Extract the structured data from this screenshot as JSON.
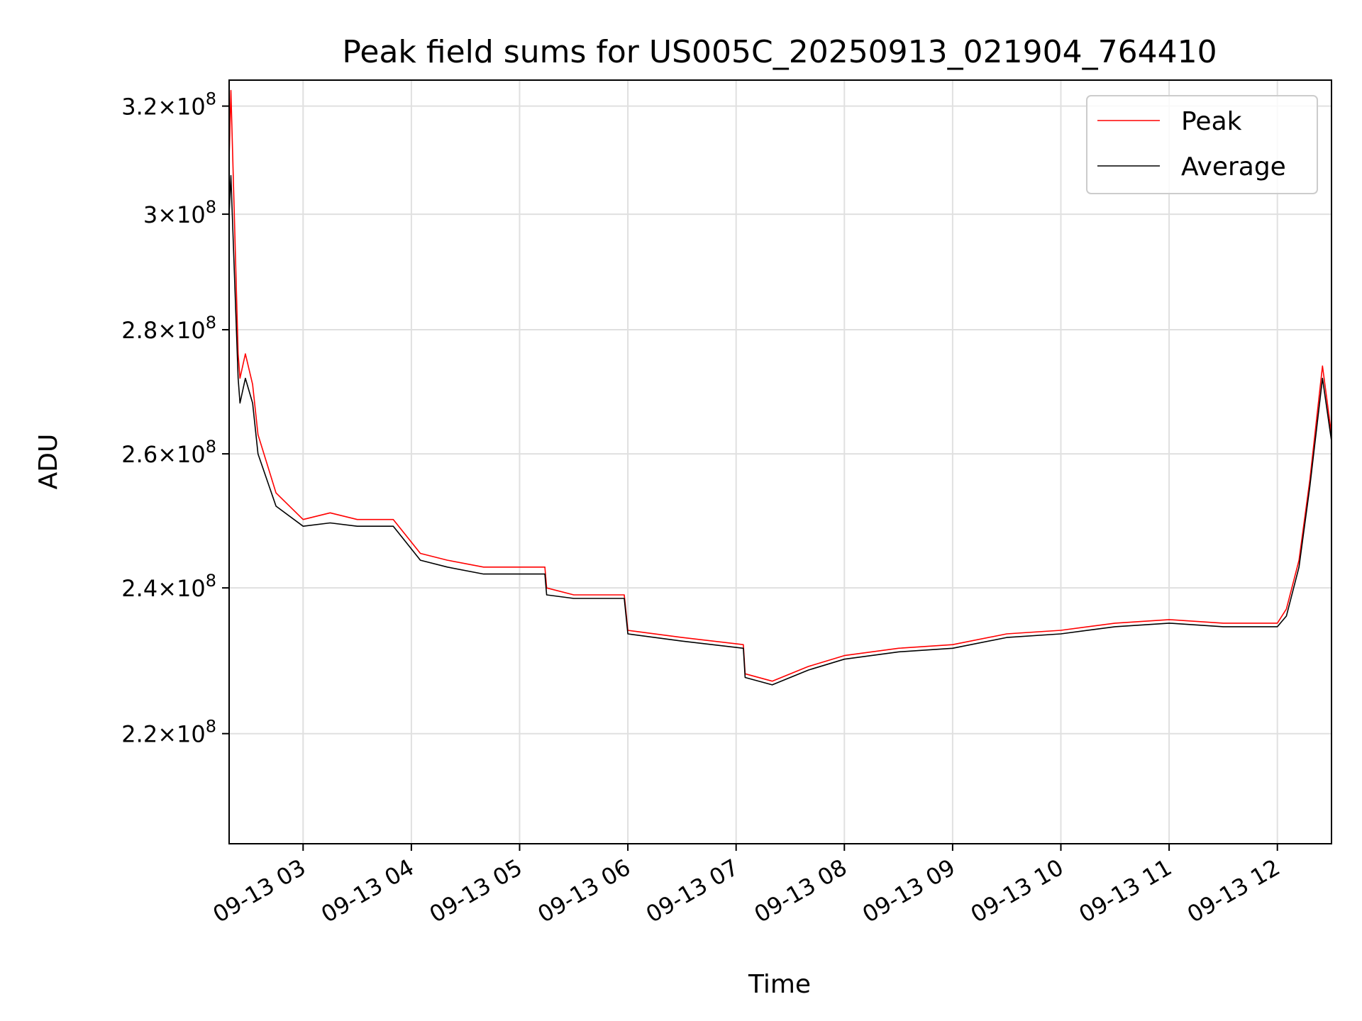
{
  "chart_data": {
    "type": "line",
    "title": "Peak field sums for US005C_20250913_021904_764410",
    "xlabel": "Time",
    "ylabel": "ADU",
    "xlim": [
      "2025-09-13 02:19",
      "2025-09-13 12:30"
    ],
    "ylim": [
      206000000,
      325000000
    ],
    "yscale": "log",
    "grid": true,
    "legend_position": "top-right",
    "x_ticks": [
      "09-13 03",
      "09-13 04",
      "09-13 05",
      "09-13 06",
      "09-13 07",
      "09-13 08",
      "09-13 09",
      "09-13 10",
      "09-13 11",
      "09-13 12"
    ],
    "y_ticks": [
      {
        "value": 220000000,
        "mantissa": "2.2",
        "base": "10",
        "exponent": "8"
      },
      {
        "value": 240000000,
        "mantissa": "2.4",
        "base": "10",
        "exponent": "8"
      },
      {
        "value": 260000000,
        "mantissa": "2.6",
        "base": "10",
        "exponent": "8"
      },
      {
        "value": 280000000,
        "mantissa": "2.8",
        "base": "10",
        "exponent": "8"
      },
      {
        "value": 300000000,
        "mantissa": "3",
        "base": "10",
        "exponent": "8"
      },
      {
        "value": 320000000,
        "mantissa": "3.2",
        "base": "10",
        "exponent": "8"
      }
    ],
    "series": [
      {
        "name": "Peak",
        "color": "#ff0000",
        "x": [
          "2025-09-13 02:19",
          "2025-09-13 02:20",
          "2025-09-13 02:24",
          "2025-09-13 02:25",
          "2025-09-13 02:28",
          "2025-09-13 02:32",
          "2025-09-13 02:35",
          "2025-09-13 02:45",
          "2025-09-13 03:00",
          "2025-09-13 03:15",
          "2025-09-13 03:30",
          "2025-09-13 03:50",
          "2025-09-13 04:05",
          "2025-09-13 04:20",
          "2025-09-13 04:40",
          "2025-09-13 04:55",
          "2025-09-13 05:00",
          "2025-09-13 05:14",
          "2025-09-13 05:15",
          "2025-09-13 05:30",
          "2025-09-13 05:58",
          "2025-09-13 06:00",
          "2025-09-13 06:30",
          "2025-09-13 07:04",
          "2025-09-13 07:05",
          "2025-09-13 07:20",
          "2025-09-13 07:40",
          "2025-09-13 08:00",
          "2025-09-13 08:30",
          "2025-09-13 09:00",
          "2025-09-13 09:30",
          "2025-09-13 10:00",
          "2025-09-13 10:30",
          "2025-09-13 11:00",
          "2025-09-13 11:30",
          "2025-09-13 12:00",
          "2025-09-13 12:05",
          "2025-09-13 12:12",
          "2025-09-13 12:18",
          "2025-09-13 12:25",
          "2025-09-13 12:30"
        ],
        "y": [
          310000000,
          323000000,
          276000000,
          272000000,
          276000000,
          271000000,
          263000000,
          254000000,
          250000000,
          251000000,
          250000000,
          250000000,
          245000000,
          244000000,
          243000000,
          243000000,
          243000000,
          243000000,
          240000000,
          239000000,
          239000000,
          234000000,
          233000000,
          232000000,
          228000000,
          227000000,
          229000000,
          230500000,
          231500000,
          232000000,
          233500000,
          234000000,
          235000000,
          235500000,
          235000000,
          235000000,
          237000000,
          244000000,
          256000000,
          274000000,
          263000000
        ]
      },
      {
        "name": "Average",
        "color": "#000000",
        "x": [
          "2025-09-13 02:19",
          "2025-09-13 02:20",
          "2025-09-13 02:24",
          "2025-09-13 02:25",
          "2025-09-13 02:28",
          "2025-09-13 02:32",
          "2025-09-13 02:35",
          "2025-09-13 02:45",
          "2025-09-13 03:00",
          "2025-09-13 03:15",
          "2025-09-13 03:30",
          "2025-09-13 03:50",
          "2025-09-13 04:05",
          "2025-09-13 04:20",
          "2025-09-13 04:40",
          "2025-09-13 04:55",
          "2025-09-13 05:00",
          "2025-09-13 05:14",
          "2025-09-13 05:15",
          "2025-09-13 05:30",
          "2025-09-13 05:58",
          "2025-09-13 06:00",
          "2025-09-13 06:30",
          "2025-09-13 07:04",
          "2025-09-13 07:05",
          "2025-09-13 07:20",
          "2025-09-13 07:40",
          "2025-09-13 08:00",
          "2025-09-13 08:30",
          "2025-09-13 09:00",
          "2025-09-13 09:30",
          "2025-09-13 10:00",
          "2025-09-13 10:30",
          "2025-09-13 11:00",
          "2025-09-13 11:30",
          "2025-09-13 12:00",
          "2025-09-13 12:05",
          "2025-09-13 12:12",
          "2025-09-13 12:18",
          "2025-09-13 12:25",
          "2025-09-13 12:30"
        ],
        "y": [
          300000000,
          307000000,
          272000000,
          268000000,
          272000000,
          268000000,
          260000000,
          252000000,
          249000000,
          249500000,
          249000000,
          249000000,
          244000000,
          243000000,
          242000000,
          242000000,
          242000000,
          242000000,
          239000000,
          238500000,
          238500000,
          233500000,
          232500000,
          231500000,
          227500000,
          226500000,
          228500000,
          230000000,
          231000000,
          231500000,
          233000000,
          233500000,
          234500000,
          235000000,
          234500000,
          234500000,
          236000000,
          243000000,
          255000000,
          272000000,
          262000000
        ]
      }
    ]
  }
}
